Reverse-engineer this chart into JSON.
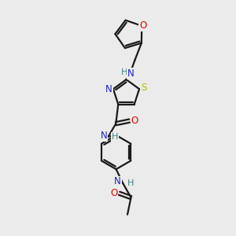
{
  "bg_color": "#ebebeb",
  "bond_color": "#1a1a1a",
  "S_color": "#b8b800",
  "O_color": "#e00000",
  "N_color": "#2020cc",
  "H_color": "#408080",
  "line_width": 1.6,
  "font_size_atom": 8.5,
  "figsize": [
    3.0,
    3.0
  ],
  "dpi": 100,
  "xlim": [
    0,
    10
  ],
  "ylim": [
    0,
    10
  ]
}
